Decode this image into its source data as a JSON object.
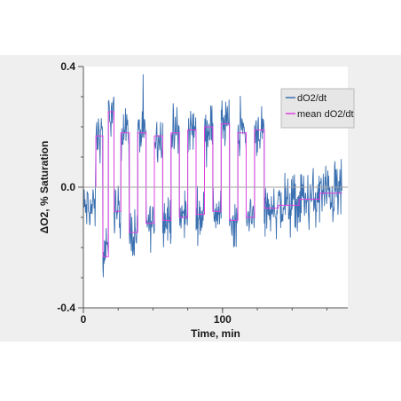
{
  "chart_data": {
    "type": "line",
    "title": "",
    "xlabel": "Time, min",
    "ylabel": "ΔO2, % Saturation",
    "xlim": [
      0,
      190
    ],
    "ylim": [
      -0.4,
      0.4
    ],
    "x_ticks": [
      0,
      100
    ],
    "x_tick_labels": [
      "0",
      "100"
    ],
    "y_ticks": [
      0.4,
      0.0,
      -0.4
    ],
    "y_tick_labels": [
      "0.4",
      "0.0",
      "-0.4"
    ],
    "grid": false,
    "legend_position": "top-right",
    "series": [
      {
        "name": "dO2/dt",
        "color": "#3a6fb0",
        "style": "noisy-line",
        "segments": [
          {
            "x_start": 0,
            "x_end": 9,
            "level": -0.07
          },
          {
            "x_start": 9,
            "x_end": 14,
            "level": 0.17
          },
          {
            "x_start": 14,
            "x_end": 18,
            "level": -0.23
          },
          {
            "x_start": 18,
            "x_end": 22,
            "level": 0.25
          },
          {
            "x_start": 22,
            "x_end": 27,
            "level": -0.08
          },
          {
            "x_start": 27,
            "x_end": 33,
            "level": 0.18
          },
          {
            "x_start": 33,
            "x_end": 39,
            "level": -0.15
          },
          {
            "x_start": 39,
            "x_end": 45,
            "level": 0.18
          },
          {
            "x_start": 45,
            "x_end": 51,
            "level": -0.12
          },
          {
            "x_start": 51,
            "x_end": 57,
            "level": 0.17
          },
          {
            "x_start": 57,
            "x_end": 63,
            "level": -0.11
          },
          {
            "x_start": 63,
            "x_end": 69,
            "level": 0.18
          },
          {
            "x_start": 69,
            "x_end": 75,
            "level": -0.1
          },
          {
            "x_start": 75,
            "x_end": 81,
            "level": 0.19
          },
          {
            "x_start": 81,
            "x_end": 87,
            "level": -0.09
          },
          {
            "x_start": 87,
            "x_end": 93,
            "level": 0.2
          },
          {
            "x_start": 93,
            "x_end": 99,
            "level": -0.08
          },
          {
            "x_start": 99,
            "x_end": 105,
            "level": 0.21
          },
          {
            "x_start": 105,
            "x_end": 111,
            "level": -0.11
          },
          {
            "x_start": 111,
            "x_end": 117,
            "level": 0.18
          },
          {
            "x_start": 117,
            "x_end": 123,
            "level": -0.1
          },
          {
            "x_start": 123,
            "x_end": 130,
            "level": 0.19
          },
          {
            "x_start": 130,
            "x_end": 140,
            "level": -0.07
          },
          {
            "x_start": 140,
            "x_end": 155,
            "level": -0.06
          },
          {
            "x_start": 155,
            "x_end": 170,
            "level": -0.04
          },
          {
            "x_start": 170,
            "x_end": 186,
            "level": -0.02
          }
        ]
      },
      {
        "name": "mean dO2/dt",
        "color": "#e040e0",
        "style": "step",
        "segments": [
          {
            "x_start": 0,
            "x_end": 9,
            "level": 0.0
          },
          {
            "x_start": 9,
            "x_end": 14,
            "level": 0.17
          },
          {
            "x_start": 14,
            "x_end": 18,
            "level": -0.23
          },
          {
            "x_start": 18,
            "x_end": 22,
            "level": 0.25
          },
          {
            "x_start": 22,
            "x_end": 27,
            "level": -0.08
          },
          {
            "x_start": 27,
            "x_end": 33,
            "level": 0.18
          },
          {
            "x_start": 33,
            "x_end": 39,
            "level": -0.15
          },
          {
            "x_start": 39,
            "x_end": 45,
            "level": 0.18
          },
          {
            "x_start": 45,
            "x_end": 51,
            "level": -0.12
          },
          {
            "x_start": 51,
            "x_end": 57,
            "level": 0.17
          },
          {
            "x_start": 57,
            "x_end": 63,
            "level": -0.11
          },
          {
            "x_start": 63,
            "x_end": 69,
            "level": 0.18
          },
          {
            "x_start": 69,
            "x_end": 75,
            "level": -0.1
          },
          {
            "x_start": 75,
            "x_end": 81,
            "level": 0.19
          },
          {
            "x_start": 81,
            "x_end": 87,
            "level": -0.09
          },
          {
            "x_start": 87,
            "x_end": 93,
            "level": 0.2
          },
          {
            "x_start": 93,
            "x_end": 99,
            "level": -0.08
          },
          {
            "x_start": 99,
            "x_end": 105,
            "level": 0.21
          },
          {
            "x_start": 105,
            "x_end": 111,
            "level": -0.11
          },
          {
            "x_start": 111,
            "x_end": 117,
            "level": 0.18
          },
          {
            "x_start": 117,
            "x_end": 123,
            "level": -0.1
          },
          {
            "x_start": 123,
            "x_end": 130,
            "level": 0.19
          },
          {
            "x_start": 130,
            "x_end": 140,
            "level": -0.07
          },
          {
            "x_start": 140,
            "x_end": 155,
            "level": -0.06
          },
          {
            "x_start": 155,
            "x_end": 170,
            "level": -0.04
          },
          {
            "x_start": 170,
            "x_end": 186,
            "level": -0.02
          }
        ]
      }
    ]
  }
}
